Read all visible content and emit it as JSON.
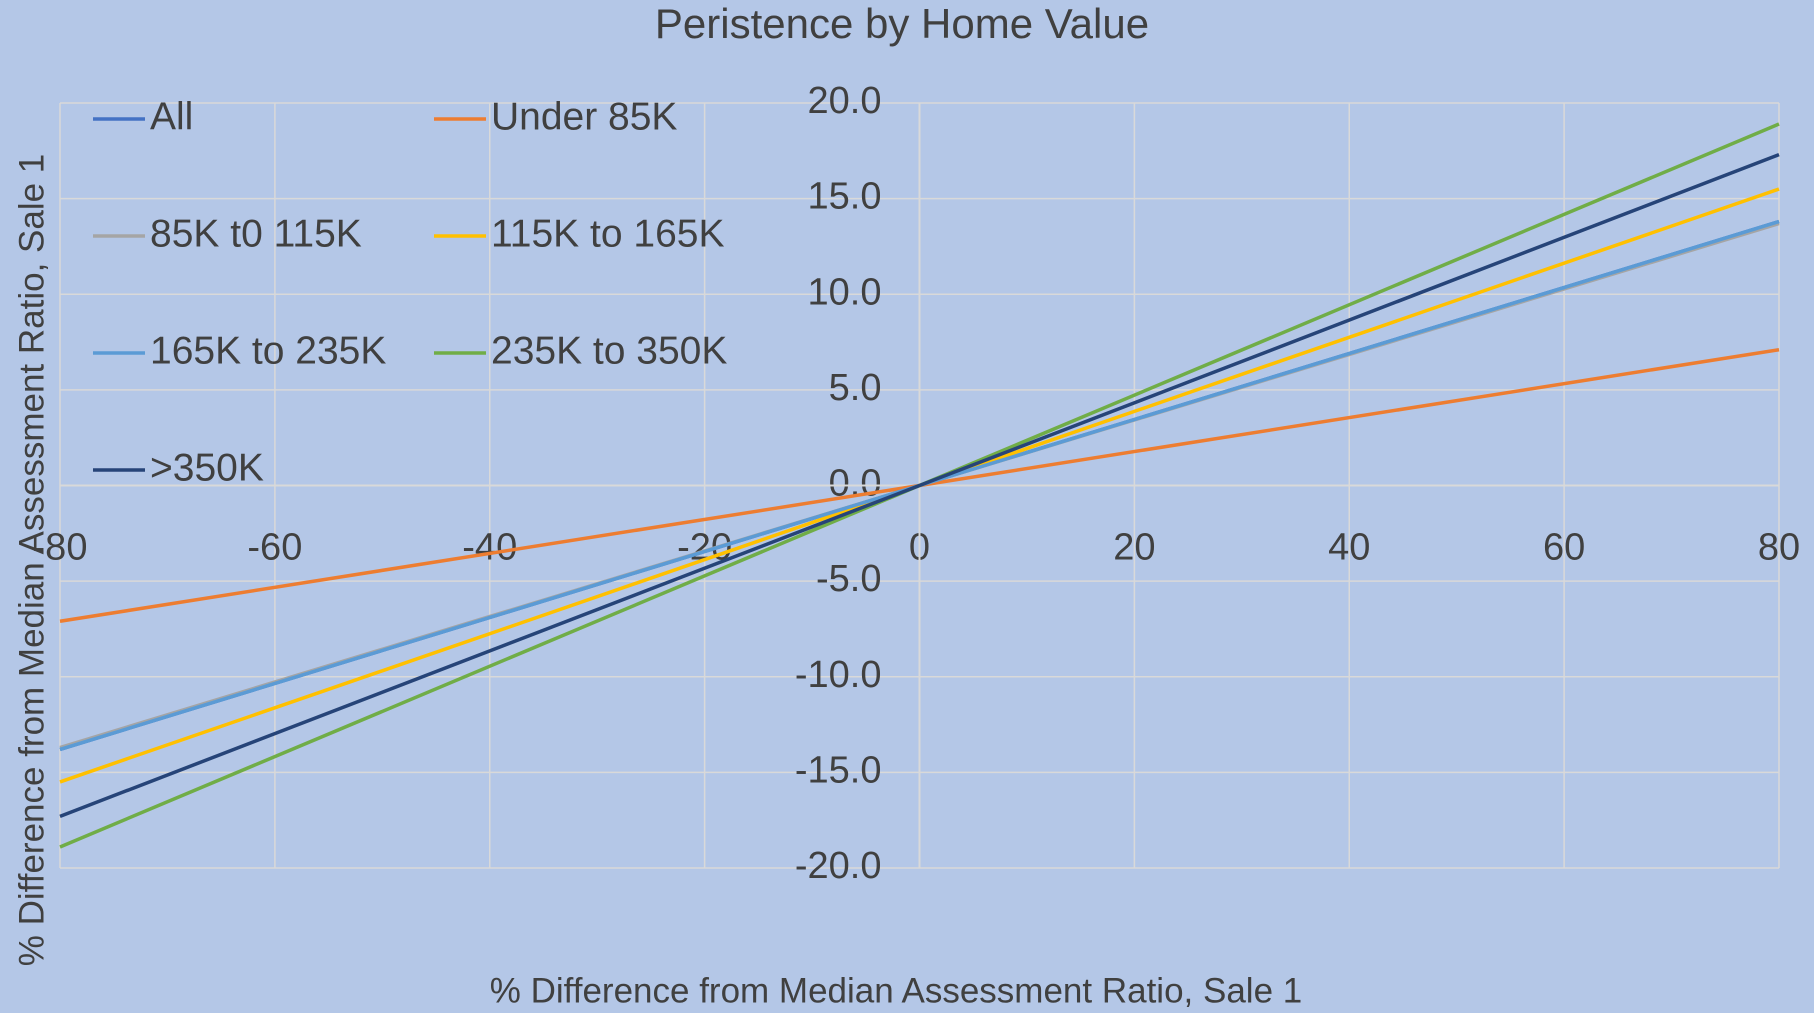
{
  "chart_data": {
    "type": "line",
    "title": "Peristence by Home Value",
    "x_label": "% Difference from Median Assessment Ratio, Sale 1",
    "y_label": "% Difference from Median Assessment Ratio, Sale 1",
    "x": [
      -80,
      0,
      80
    ],
    "series": [
      {
        "name": "All",
        "color": "#4472c4",
        "values": [
          -13.8,
          0,
          13.8
        ]
      },
      {
        "name": "Under 85K",
        "color": "#ed7d31",
        "values": [
          -7.1,
          0,
          7.1
        ]
      },
      {
        "name": "85K t0 115K",
        "color": "#a5a5a5",
        "values": [
          -13.7,
          0,
          13.7
        ]
      },
      {
        "name": "115K to 165K",
        "color": "#ffc000",
        "values": [
          -15.5,
          0,
          15.5
        ]
      },
      {
        "name": "165K to 235K",
        "color": "#5b9bd5",
        "values": [
          -13.8,
          0,
          13.8
        ]
      },
      {
        "name": "235K to 350K",
        "color": "#70ad47",
        "values": [
          -18.9,
          0,
          18.9
        ]
      },
      {
        "name": ">350K",
        "color": "#264478",
        "values": [
          -17.3,
          0,
          17.3
        ]
      }
    ],
    "xlim": [
      -80,
      80
    ],
    "xticks": [
      -80,
      -60,
      -40,
      -20,
      0,
      20,
      40,
      60,
      80
    ],
    "ylim": [
      -20,
      20
    ],
    "yticks": [
      {
        "value": -20,
        "label": "-20.0"
      },
      {
        "value": -15,
        "label": "-15.0"
      },
      {
        "value": -10,
        "label": "-10.0"
      },
      {
        "value": -5,
        "label": "-5.0"
      },
      {
        "value": 0,
        "label": "0.0"
      },
      {
        "value": 5,
        "label": "5.0"
      },
      {
        "value": 10,
        "label": "10.0"
      },
      {
        "value": 15,
        "label": "15.0"
      },
      {
        "value": 20,
        "label": "20.0"
      }
    ],
    "grid": true,
    "legend": "top-left"
  }
}
